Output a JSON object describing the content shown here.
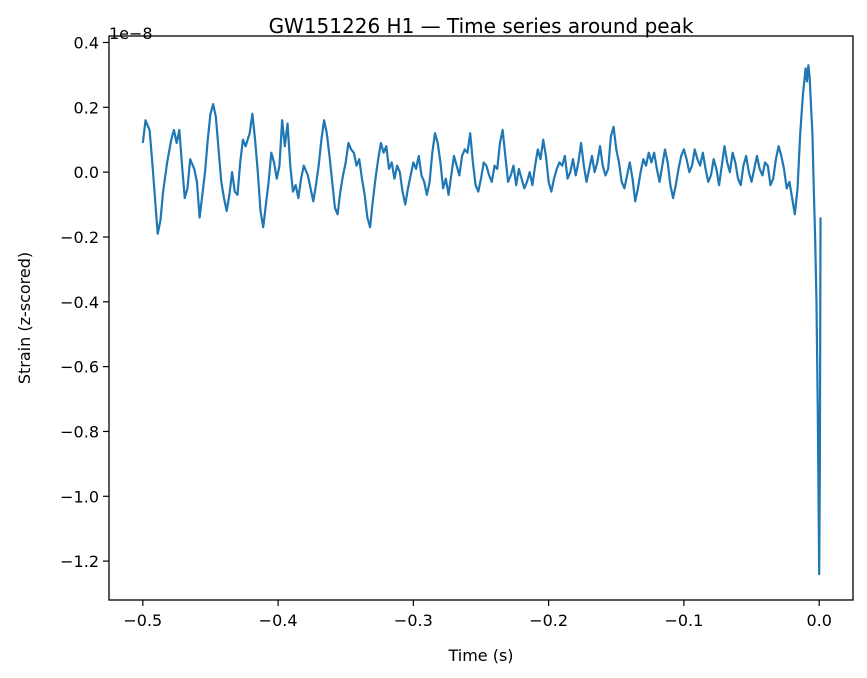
{
  "chart_data": {
    "type": "line",
    "title": "GW151226 H1 — Time series around peak",
    "xlabel": "Time (s)",
    "ylabel": "Strain (z-scored)",
    "y_offset_label": "1e−8",
    "xlim": [
      -0.525,
      0.025
    ],
    "ylim": [
      -1.32,
      0.42
    ],
    "x_ticks": [
      -0.5,
      -0.4,
      -0.3,
      -0.2,
      -0.1,
      0.0
    ],
    "x_tick_labels": [
      "−0.5",
      "−0.4",
      "−0.3",
      "−0.2",
      "−0.1",
      "0.0"
    ],
    "y_ticks": [
      0.4,
      0.2,
      0.0,
      -0.2,
      -0.4,
      -0.6,
      -0.8,
      -1.0,
      -1.2
    ],
    "y_tick_labels": [
      "0.4",
      "0.2",
      "0.0",
      "−0.2",
      "−0.4",
      "−0.6",
      "−0.8",
      "−1.0",
      "−1.2"
    ],
    "grid": false,
    "legend": "none",
    "series": [
      {
        "color": "#1f77b4",
        "points": [
          [
            -0.5,
            0.09
          ],
          [
            -0.498,
            0.16
          ],
          [
            -0.495,
            0.13
          ],
          [
            -0.493,
            0.03
          ],
          [
            -0.491,
            -0.08
          ],
          [
            -0.489,
            -0.19
          ],
          [
            -0.487,
            -0.15
          ],
          [
            -0.485,
            -0.06
          ],
          [
            -0.482,
            0.03
          ],
          [
            -0.479,
            0.1
          ],
          [
            -0.477,
            0.13
          ],
          [
            -0.475,
            0.09
          ],
          [
            -0.473,
            0.13
          ],
          [
            -0.471,
            0.02
          ],
          [
            -0.469,
            -0.08
          ],
          [
            -0.467,
            -0.05
          ],
          [
            -0.465,
            0.04
          ],
          [
            -0.462,
            0.01
          ],
          [
            -0.46,
            -0.03
          ],
          [
            -0.458,
            -0.14
          ],
          [
            -0.456,
            -0.07
          ],
          [
            -0.454,
            0.0
          ],
          [
            -0.452,
            0.1
          ],
          [
            -0.45,
            0.18
          ],
          [
            -0.448,
            0.21
          ],
          [
            -0.446,
            0.17
          ],
          [
            -0.444,
            0.07
          ],
          [
            -0.442,
            -0.03
          ],
          [
            -0.44,
            -0.08
          ],
          [
            -0.438,
            -0.12
          ],
          [
            -0.436,
            -0.07
          ],
          [
            -0.434,
            0.0
          ],
          [
            -0.432,
            -0.06
          ],
          [
            -0.43,
            -0.07
          ],
          [
            -0.428,
            0.03
          ],
          [
            -0.426,
            0.1
          ],
          [
            -0.424,
            0.08
          ],
          [
            -0.421,
            0.12
          ],
          [
            -0.419,
            0.18
          ],
          [
            -0.417,
            0.1
          ],
          [
            -0.415,
            0.0
          ],
          [
            -0.413,
            -0.12
          ],
          [
            -0.411,
            -0.17
          ],
          [
            -0.409,
            -0.1
          ],
          [
            -0.407,
            -0.03
          ],
          [
            -0.405,
            0.06
          ],
          [
            -0.403,
            0.03
          ],
          [
            -0.401,
            -0.02
          ],
          [
            -0.399,
            0.02
          ],
          [
            -0.397,
            0.16
          ],
          [
            -0.395,
            0.08
          ],
          [
            -0.393,
            0.15
          ],
          [
            -0.391,
            0.02
          ],
          [
            -0.389,
            -0.06
          ],
          [
            -0.387,
            -0.04
          ],
          [
            -0.385,
            -0.08
          ],
          [
            -0.383,
            -0.02
          ],
          [
            -0.381,
            0.02
          ],
          [
            -0.378,
            -0.01
          ],
          [
            -0.376,
            -0.05
          ],
          [
            -0.374,
            -0.09
          ],
          [
            -0.372,
            -0.04
          ],
          [
            -0.37,
            0.02
          ],
          [
            -0.368,
            0.1
          ],
          [
            -0.366,
            0.16
          ],
          [
            -0.364,
            0.12
          ],
          [
            -0.362,
            0.05
          ],
          [
            -0.36,
            -0.03
          ],
          [
            -0.358,
            -0.11
          ],
          [
            -0.356,
            -0.13
          ],
          [
            -0.354,
            -0.06
          ],
          [
            -0.352,
            -0.01
          ],
          [
            -0.35,
            0.03
          ],
          [
            -0.348,
            0.09
          ],
          [
            -0.346,
            0.07
          ],
          [
            -0.344,
            0.06
          ],
          [
            -0.342,
            0.02
          ],
          [
            -0.34,
            0.04
          ],
          [
            -0.338,
            -0.02
          ],
          [
            -0.336,
            -0.07
          ],
          [
            -0.334,
            -0.14
          ],
          [
            -0.332,
            -0.17
          ],
          [
            -0.33,
            -0.09
          ],
          [
            -0.328,
            -0.02
          ],
          [
            -0.326,
            0.04
          ],
          [
            -0.324,
            0.09
          ],
          [
            -0.322,
            0.06
          ],
          [
            -0.32,
            0.08
          ],
          [
            -0.318,
            0.01
          ],
          [
            -0.316,
            0.03
          ],
          [
            -0.314,
            -0.02
          ],
          [
            -0.312,
            0.02
          ],
          [
            -0.31,
            0.0
          ],
          [
            -0.308,
            -0.06
          ],
          [
            -0.306,
            -0.1
          ],
          [
            -0.304,
            -0.05
          ],
          [
            -0.302,
            -0.01
          ],
          [
            -0.3,
            0.03
          ],
          [
            -0.298,
            0.01
          ],
          [
            -0.296,
            0.05
          ],
          [
            -0.294,
            -0.01
          ],
          [
            -0.292,
            -0.03
          ],
          [
            -0.29,
            -0.07
          ],
          [
            -0.288,
            -0.03
          ],
          [
            -0.286,
            0.06
          ],
          [
            -0.284,
            0.12
          ],
          [
            -0.282,
            0.09
          ],
          [
            -0.28,
            0.03
          ],
          [
            -0.278,
            -0.05
          ],
          [
            -0.276,
            -0.02
          ],
          [
            -0.274,
            -0.07
          ],
          [
            -0.272,
            -0.01
          ],
          [
            -0.27,
            0.05
          ],
          [
            -0.268,
            0.02
          ],
          [
            -0.266,
            -0.01
          ],
          [
            -0.264,
            0.05
          ],
          [
            -0.262,
            0.07
          ],
          [
            -0.26,
            0.06
          ],
          [
            -0.258,
            0.12
          ],
          [
            -0.256,
            0.03
          ],
          [
            -0.254,
            -0.04
          ],
          [
            -0.252,
            -0.06
          ],
          [
            -0.25,
            -0.02
          ],
          [
            -0.248,
            0.03
          ],
          [
            -0.246,
            0.02
          ],
          [
            -0.244,
            -0.01
          ],
          [
            -0.242,
            -0.03
          ],
          [
            -0.24,
            0.02
          ],
          [
            -0.238,
            0.01
          ],
          [
            -0.236,
            0.09
          ],
          [
            -0.234,
            0.13
          ],
          [
            -0.232,
            0.05
          ],
          [
            -0.23,
            -0.03
          ],
          [
            -0.228,
            -0.01
          ],
          [
            -0.226,
            0.02
          ],
          [
            -0.224,
            -0.04
          ],
          [
            -0.222,
            0.01
          ],
          [
            -0.22,
            -0.02
          ],
          [
            -0.218,
            -0.05
          ],
          [
            -0.216,
            -0.03
          ],
          [
            -0.214,
            0.0
          ],
          [
            -0.212,
            -0.04
          ],
          [
            -0.21,
            0.02
          ],
          [
            -0.208,
            0.07
          ],
          [
            -0.206,
            0.04
          ],
          [
            -0.204,
            0.1
          ],
          [
            -0.202,
            0.05
          ],
          [
            -0.2,
            -0.03
          ],
          [
            -0.198,
            -0.06
          ],
          [
            -0.196,
            -0.02
          ],
          [
            -0.194,
            0.01
          ],
          [
            -0.192,
            0.03
          ],
          [
            -0.19,
            0.02
          ],
          [
            -0.188,
            0.05
          ],
          [
            -0.186,
            -0.02
          ],
          [
            -0.184,
            0.0
          ],
          [
            -0.182,
            0.04
          ],
          [
            -0.18,
            -0.01
          ],
          [
            -0.178,
            0.03
          ],
          [
            -0.176,
            0.09
          ],
          [
            -0.174,
            0.02
          ],
          [
            -0.172,
            -0.03
          ],
          [
            -0.17,
            0.01
          ],
          [
            -0.168,
            0.05
          ],
          [
            -0.166,
            0.0
          ],
          [
            -0.164,
            0.03
          ],
          [
            -0.162,
            0.08
          ],
          [
            -0.16,
            0.02
          ],
          [
            -0.158,
            -0.01
          ],
          [
            -0.156,
            0.01
          ],
          [
            -0.154,
            0.11
          ],
          [
            -0.152,
            0.14
          ],
          [
            -0.15,
            0.07
          ],
          [
            -0.148,
            0.03
          ],
          [
            -0.146,
            -0.03
          ],
          [
            -0.144,
            -0.05
          ],
          [
            -0.142,
            -0.01
          ],
          [
            -0.14,
            0.03
          ],
          [
            -0.138,
            -0.02
          ],
          [
            -0.136,
            -0.09
          ],
          [
            -0.134,
            -0.05
          ],
          [
            -0.132,
            0.0
          ],
          [
            -0.13,
            0.04
          ],
          [
            -0.128,
            0.02
          ],
          [
            -0.126,
            0.06
          ],
          [
            -0.124,
            0.03
          ],
          [
            -0.122,
            0.06
          ],
          [
            -0.12,
            0.01
          ],
          [
            -0.118,
            -0.03
          ],
          [
            -0.116,
            0.02
          ],
          [
            -0.114,
            0.07
          ],
          [
            -0.112,
            0.03
          ],
          [
            -0.11,
            -0.04
          ],
          [
            -0.108,
            -0.08
          ],
          [
            -0.106,
            -0.04
          ],
          [
            -0.104,
            0.01
          ],
          [
            -0.102,
            0.05
          ],
          [
            -0.1,
            0.07
          ],
          [
            -0.098,
            0.04
          ],
          [
            -0.096,
            0.0
          ],
          [
            -0.094,
            0.02
          ],
          [
            -0.092,
            0.07
          ],
          [
            -0.09,
            0.04
          ],
          [
            -0.088,
            0.02
          ],
          [
            -0.086,
            0.06
          ],
          [
            -0.084,
            0.01
          ],
          [
            -0.082,
            -0.03
          ],
          [
            -0.08,
            -0.01
          ],
          [
            -0.078,
            0.04
          ],
          [
            -0.076,
            0.01
          ],
          [
            -0.074,
            -0.04
          ],
          [
            -0.072,
            0.02
          ],
          [
            -0.07,
            0.08
          ],
          [
            -0.068,
            0.03
          ],
          [
            -0.066,
            0.0
          ],
          [
            -0.064,
            0.06
          ],
          [
            -0.062,
            0.03
          ],
          [
            -0.06,
            -0.02
          ],
          [
            -0.058,
            -0.04
          ],
          [
            -0.056,
            0.02
          ],
          [
            -0.054,
            0.05
          ],
          [
            -0.052,
            0.0
          ],
          [
            -0.05,
            -0.03
          ],
          [
            -0.048,
            0.01
          ],
          [
            -0.046,
            0.05
          ],
          [
            -0.044,
            0.01
          ],
          [
            -0.042,
            -0.01
          ],
          [
            -0.04,
            0.03
          ],
          [
            -0.038,
            0.02
          ],
          [
            -0.036,
            -0.04
          ],
          [
            -0.034,
            -0.02
          ],
          [
            -0.032,
            0.04
          ],
          [
            -0.03,
            0.08
          ],
          [
            -0.028,
            0.05
          ],
          [
            -0.026,
            0.01
          ],
          [
            -0.024,
            -0.05
          ],
          [
            -0.022,
            -0.03
          ],
          [
            -0.02,
            -0.08
          ],
          [
            -0.018,
            -0.13
          ],
          [
            -0.016,
            -0.05
          ],
          [
            -0.014,
            0.12
          ],
          [
            -0.012,
            0.24
          ],
          [
            -0.01,
            0.32
          ],
          [
            -0.009,
            0.28
          ],
          [
            -0.008,
            0.33
          ],
          [
            -0.007,
            0.29
          ],
          [
            -0.006,
            0.2
          ],
          [
            -0.005,
            0.12
          ],
          [
            -0.004,
            -0.05
          ],
          [
            -0.003,
            -0.2
          ],
          [
            -0.002,
            -0.4
          ],
          [
            -0.001,
            -0.75
          ],
          [
            0.0,
            -1.24
          ],
          [
            0.0005,
            -0.9
          ],
          [
            0.001,
            -0.14
          ]
        ]
      }
    ]
  }
}
